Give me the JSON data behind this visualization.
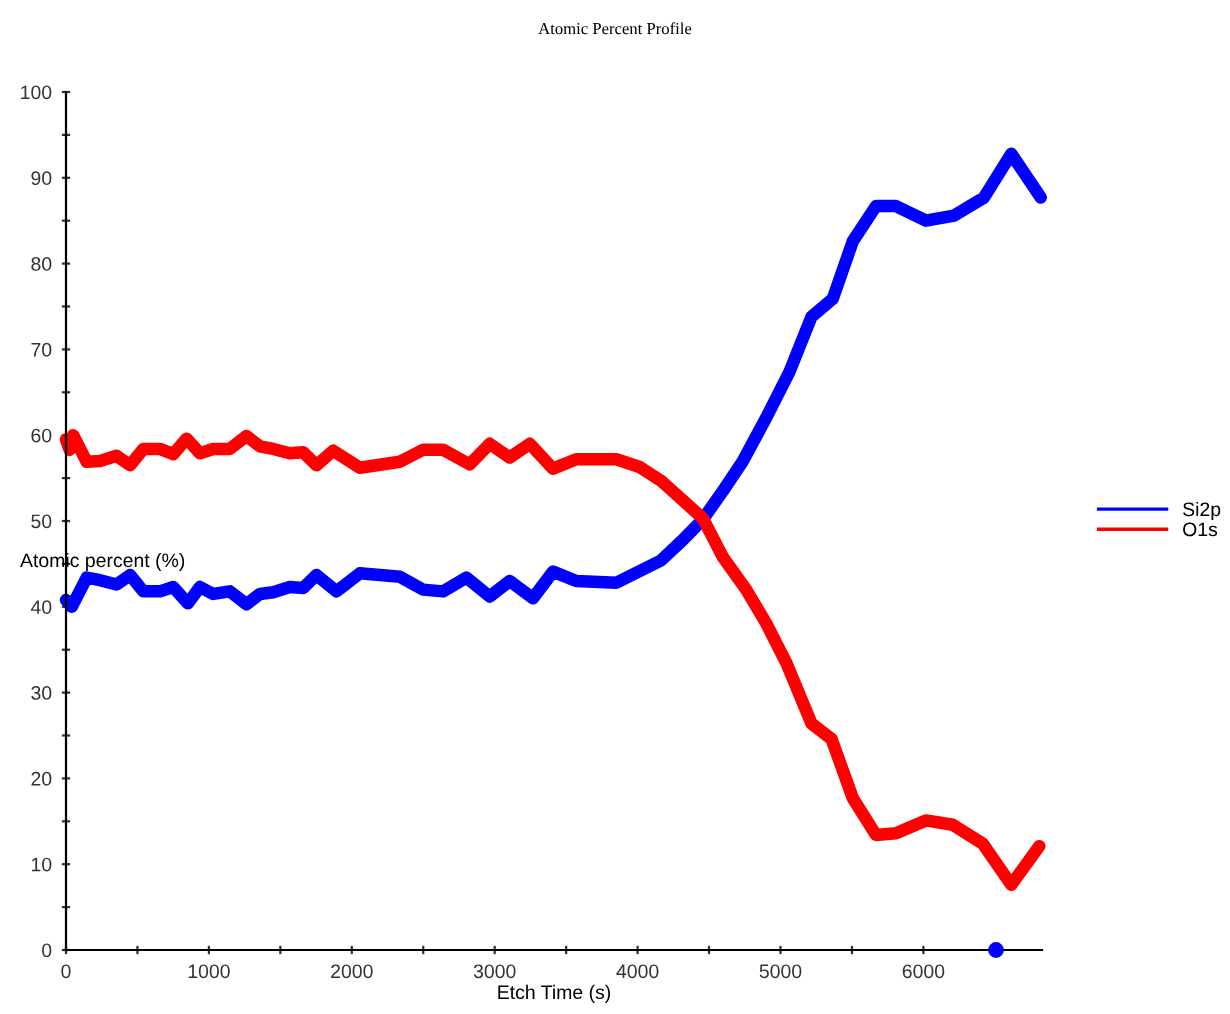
{
  "chart_data": {
    "type": "line",
    "title": "Atomic Percent Profile",
    "xlabel": "Etch Time (s)",
    "ylabel": "Atomic percent (%)",
    "xlim": [
      0,
      6830
    ],
    "ylim": [
      0,
      100
    ],
    "xticks": [
      0,
      {
        "value": 500,
        "label": null
      },
      1000,
      {
        "value": 1500,
        "label": null
      },
      2000,
      {
        "value": 2500,
        "label": null
      },
      3000,
      {
        "value": 3500,
        "label": null
      },
      4000,
      {
        "value": 4500,
        "label": null
      },
      5000,
      {
        "value": 5500,
        "label": null
      },
      6000,
      {
        "value": 6500,
        "label": null
      }
    ],
    "yticks": [
      0,
      {
        "value": 5,
        "label": null
      },
      10,
      {
        "value": 15,
        "label": null
      },
      20,
      {
        "value": 25,
        "label": null
      },
      30,
      {
        "value": 35,
        "label": null
      },
      40,
      {
        "value": 45,
        "label": null
      },
      50,
      {
        "value": 55,
        "label": null
      },
      60,
      {
        "value": 65,
        "label": null
      },
      70,
      {
        "value": 75,
        "label": null
      },
      80,
      {
        "value": 85,
        "label": null
      },
      90,
      {
        "value": 95,
        "label": null
      },
      100
    ],
    "grid": false,
    "legend": "right",
    "series": [
      {
        "name": "Si2p",
        "color": "#0000ff",
        "x": [
          0,
          40,
          145,
          238,
          354,
          448,
          541,
          657,
          751,
          853,
          937,
          1030,
          1147,
          1263,
          1357,
          1450,
          1566,
          1660,
          1753,
          1893,
          2056,
          2336,
          2499,
          2639,
          2802,
          2965,
          3105,
          3268,
          3408,
          3571,
          3851,
          4163,
          4317,
          4457,
          4597,
          4737,
          4899,
          5063,
          5217,
          5366,
          5506,
          5668,
          5808,
          6018,
          6214,
          6424,
          6615,
          6821
        ],
        "values": [
          40.8,
          40,
          43.4,
          43.1,
          42.6,
          43.7,
          41.8,
          41.8,
          42.3,
          40.4,
          42.3,
          41.5,
          41.8,
          40.3,
          41.5,
          41.7,
          42.3,
          42.2,
          43.7,
          41.8,
          43.9,
          43.5,
          42,
          41.8,
          43.4,
          41.2,
          43,
          41,
          44.1,
          43,
          42.8,
          45.4,
          47.8,
          50.2,
          53.5,
          57,
          62,
          67.4,
          73.8,
          75.9,
          82.6,
          86.7,
          86.7,
          85,
          85.6,
          87.7,
          92.8,
          87.7
        ]
      },
      {
        "name": "O1s",
        "color": "#ff0000",
        "x": [
          0,
          25,
          50,
          145,
          238,
          354,
          448,
          541,
          657,
          751,
          844,
          937,
          1030,
          1147,
          1263,
          1357,
          1450,
          1566,
          1660,
          1753,
          1870,
          2056,
          2336,
          2499,
          2639,
          2825,
          2965,
          3105,
          3245,
          3408,
          3571,
          3851,
          4014,
          4163,
          4317,
          4457,
          4597,
          4760,
          4899,
          5040,
          5217,
          5357,
          5506,
          5668,
          5808,
          6018,
          6205,
          6415,
          6615,
          6811
        ],
        "values": [
          59.5,
          58.3,
          60,
          56.9,
          57,
          57.6,
          56.5,
          58.4,
          58.4,
          57.8,
          59.6,
          57.9,
          58.4,
          58.4,
          59.9,
          58.7,
          58.4,
          57.9,
          58,
          56.5,
          58.2,
          56.2,
          56.9,
          58.3,
          58.3,
          56.6,
          59,
          57.4,
          59,
          56.1,
          57.2,
          57.2,
          56.3,
          54.7,
          52.4,
          50.3,
          45.8,
          42,
          38.1,
          33.5,
          26.4,
          24.6,
          17.7,
          13.4,
          13.6,
          15.1,
          14.6,
          12.4,
          7.6,
          12.1
        ]
      },
      {
        "type": "scatter",
        "color": "#0000ff",
        "x": [
          6508
        ],
        "values": [
          0
        ],
        "marker": "circle"
      }
    ]
  }
}
